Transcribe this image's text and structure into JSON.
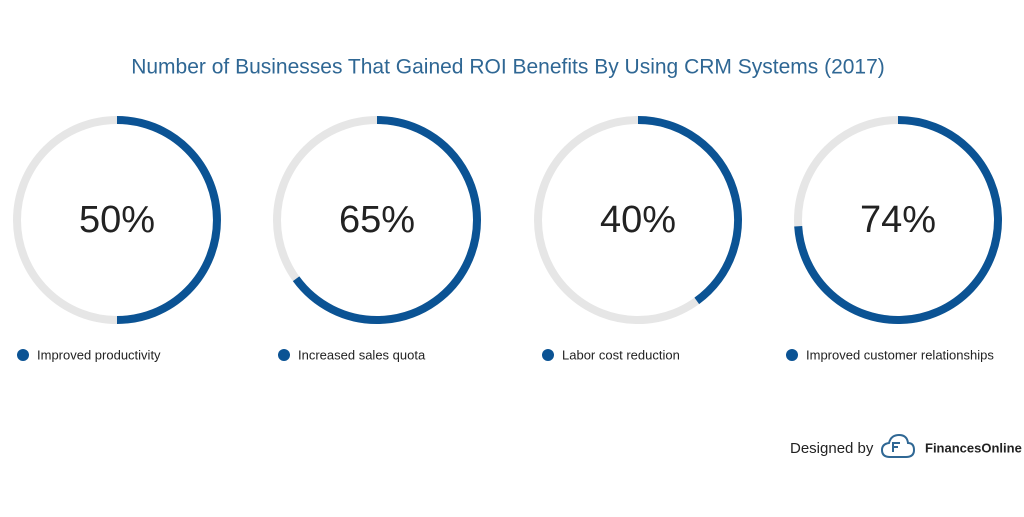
{
  "title": "Number of Businesses That Gained ROI Benefits By Using CRM Systems (2017)",
  "chart_data": [
    {
      "type": "ring",
      "categories": [
        "Improved productivity"
      ],
      "values": [
        50
      ],
      "value_labels": [
        "50%"
      ],
      "ylim": [
        0,
        100
      ],
      "color": "#0b5394",
      "track_color": "#e6e6e6"
    },
    {
      "type": "ring",
      "categories": [
        "Increased sales quota"
      ],
      "values": [
        65
      ],
      "value_labels": [
        "65%"
      ],
      "ylim": [
        0,
        100
      ],
      "color": "#0b5394",
      "track_color": "#e6e6e6"
    },
    {
      "type": "ring",
      "categories": [
        "Labor cost reduction"
      ],
      "values": [
        40
      ],
      "value_labels": [
        "40%"
      ],
      "ylim": [
        0,
        100
      ],
      "color": "#0b5394",
      "track_color": "#e6e6e6"
    },
    {
      "type": "ring",
      "categories": [
        "Improved customer relationships"
      ],
      "values": [
        74
      ],
      "value_labels": [
        "74%"
      ],
      "ylim": [
        0,
        100
      ],
      "color": "#0b5394",
      "track_color": "#e6e6e6"
    }
  ],
  "credit": {
    "text": "Designed by",
    "brand": "FinancesOnline"
  }
}
